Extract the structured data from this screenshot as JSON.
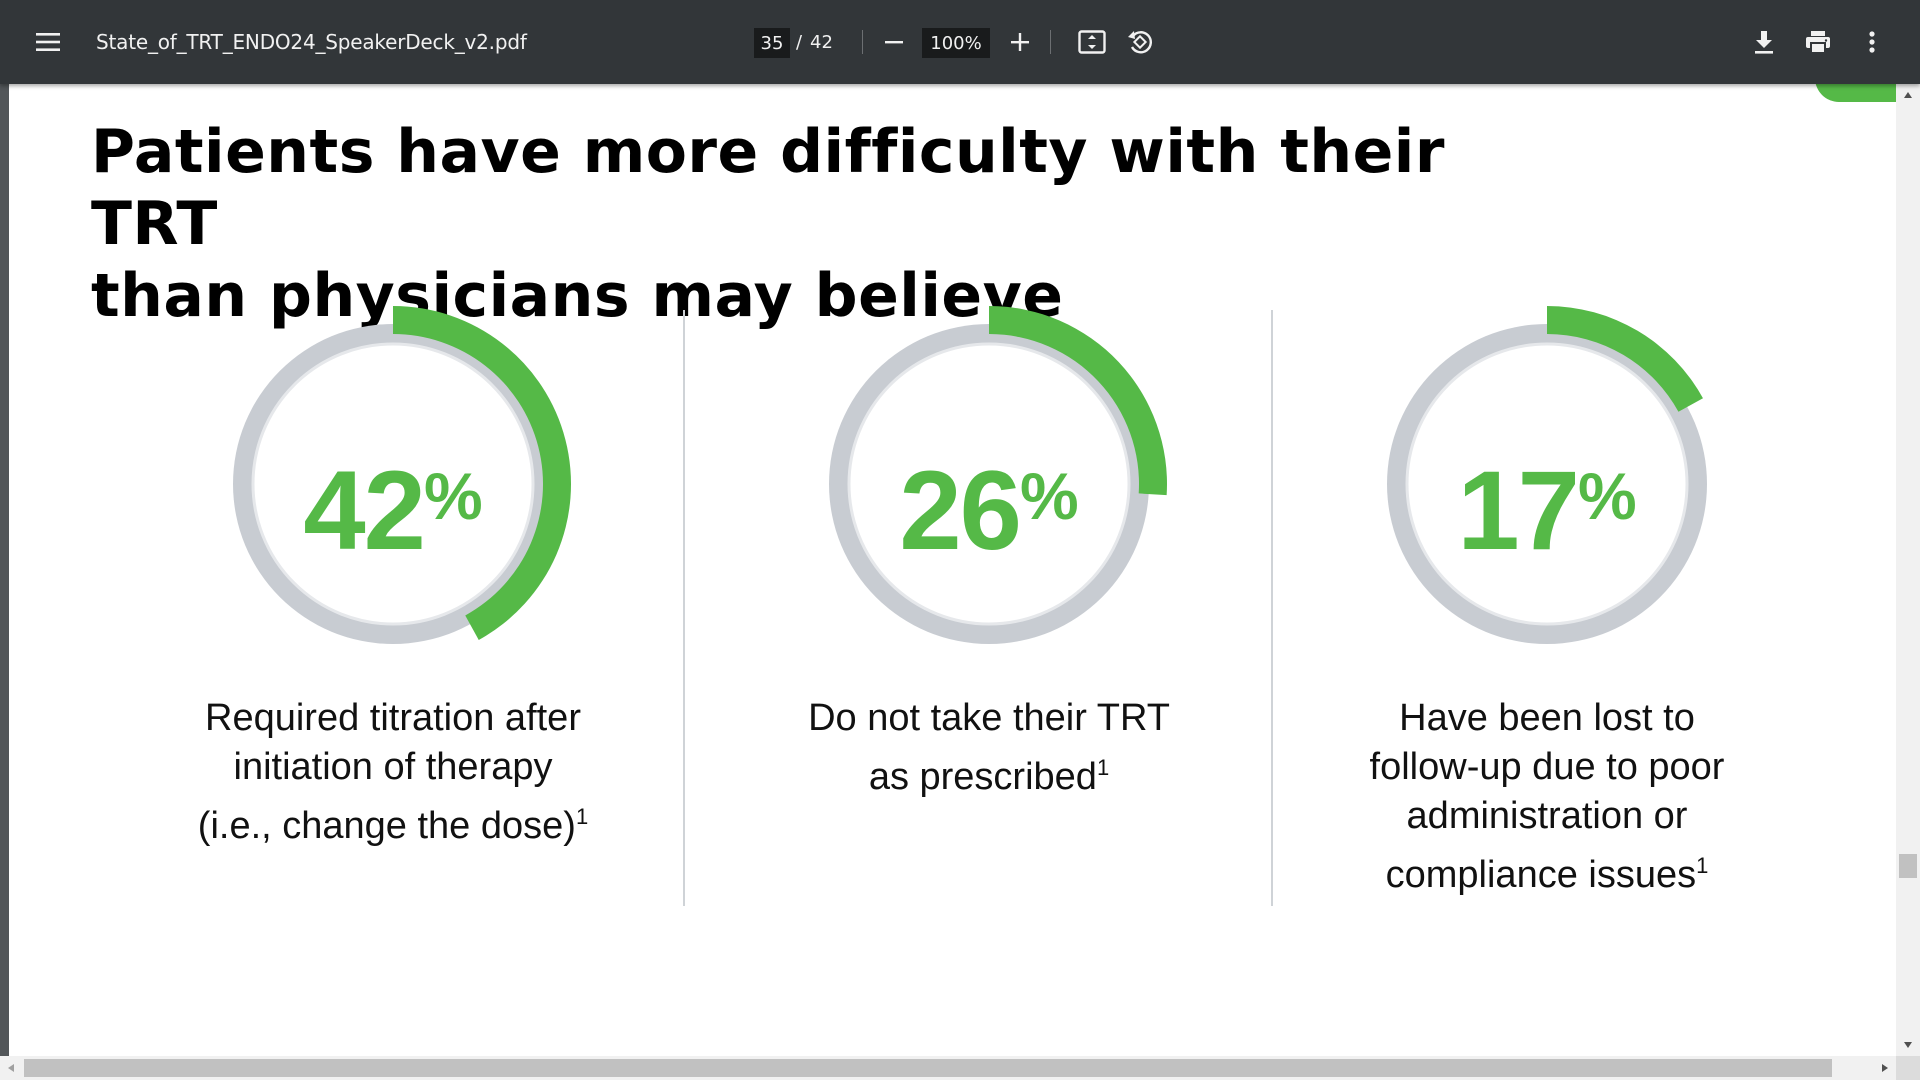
{
  "toolbar": {
    "file_name": "State_of_TRT_ENDO24_SpeakerDeck_v2.pdf",
    "current_page": "35",
    "page_separator": "/",
    "total_pages": "42",
    "zoom": "100%",
    "icons": {
      "menu": "hamburger-menu-icon",
      "zoom_out": "minus-icon",
      "zoom_in": "plus-icon",
      "fit": "fit-to-page-icon",
      "rotate": "rotate-counterclockwise-icon",
      "download": "download-icon",
      "print": "print-icon",
      "more": "more-vertical-icon"
    }
  },
  "slide": {
    "title_line1": "Patients have more difficulty with their TRT",
    "title_line2": "than physicians may believe",
    "accent_color": "#55b947",
    "ring_color": "#c8ccd2",
    "stats": [
      {
        "value": "42",
        "unit": "%",
        "fraction": 0.42,
        "caption_lines": [
          "Required titration after",
          "initiation of therapy",
          "(i.e., change the dose)"
        ],
        "footnote": "1"
      },
      {
        "value": "26",
        "unit": "%",
        "fraction": 0.26,
        "caption_lines": [
          "Do not take their TRT",
          "as prescribed"
        ],
        "footnote": "1"
      },
      {
        "value": "17",
        "unit": "%",
        "fraction": 0.17,
        "caption_lines": [
          "Have been lost to",
          "follow-up due to poor",
          "administration or",
          "compliance issues"
        ],
        "footnote": "1"
      }
    ]
  }
}
